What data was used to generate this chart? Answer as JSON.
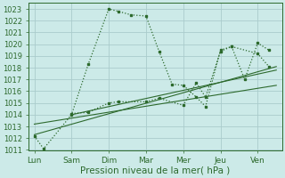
{
  "background_color": "#cceae8",
  "grid_color": "#aacccc",
  "line_color": "#2d6a2d",
  "xlabel": "Pression niveau de la mer( hPa )",
  "ylim": [
    1011,
    1023.5
  ],
  "yticks": [
    1011,
    1012,
    1013,
    1014,
    1015,
    1016,
    1017,
    1018,
    1019,
    1020,
    1021,
    1022,
    1023
  ],
  "xtick_labels": [
    "Lun",
    "Sam",
    "Dim",
    "Mar",
    "Mer",
    "Jeu",
    "Ven"
  ],
  "xtick_positions": [
    0,
    1,
    2,
    3,
    4,
    5,
    6
  ],
  "xlim": [
    -0.15,
    6.65
  ],
  "line1_x": [
    0,
    0.25,
    1.0,
    1.45,
    2.0,
    2.25,
    2.6,
    3.0,
    3.35,
    3.7,
    4.0,
    4.35,
    4.6,
    5.0,
    5.3,
    5.65,
    6.0,
    6.3
  ],
  "line1_y": [
    1012.2,
    1011.1,
    1014.0,
    1018.3,
    1023.0,
    1022.8,
    1022.5,
    1022.4,
    1019.4,
    1016.6,
    1016.5,
    1015.5,
    1014.7,
    1019.5,
    1019.8,
    1017.0,
    1020.1,
    1019.5
  ],
  "line2_x": [
    1.0,
    1.45,
    2.0,
    2.25,
    3.0,
    3.35,
    4.0,
    4.35,
    4.6,
    5.0,
    5.3,
    6.0,
    6.3
  ],
  "line2_y": [
    1014.1,
    1014.2,
    1015.0,
    1015.1,
    1015.1,
    1015.4,
    1014.8,
    1016.7,
    1015.5,
    1019.4,
    1019.8,
    1019.2,
    1018.1
  ],
  "trend1_x": [
    0.0,
    6.5
  ],
  "trend1_y": [
    1012.3,
    1018.1
  ],
  "trend2_x": [
    0.0,
    6.5
  ],
  "trend2_y": [
    1013.2,
    1016.5
  ],
  "trend3_x": [
    1.0,
    6.5
  ],
  "trend3_y": [
    1014.0,
    1017.8
  ]
}
